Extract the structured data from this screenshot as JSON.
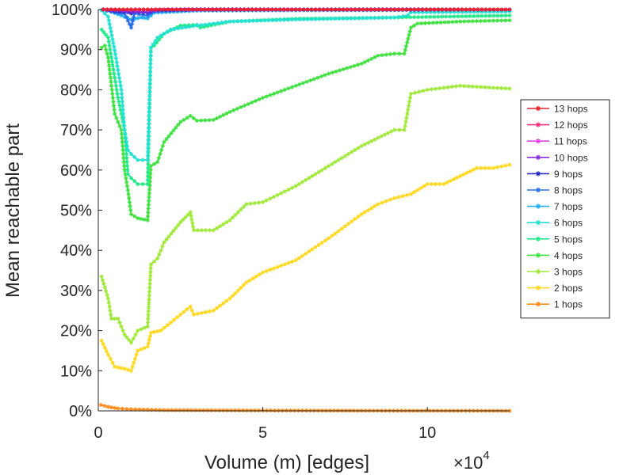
{
  "chart_data": {
    "type": "line",
    "xlabel": "Volume (m) [edges]",
    "ylabel": "Mean reachable part",
    "x_multiplier_base": "×10",
    "x_multiplier_exp": "4",
    "xlim": [
      0,
      12.5
    ],
    "ylim": [
      0,
      100
    ],
    "x_ticks": [
      {
        "value": 0,
        "label": "0"
      },
      {
        "value": 5,
        "label": "5"
      },
      {
        "value": 10,
        "label": "10"
      }
    ],
    "y_ticks": [
      {
        "value": 0,
        "label": "0%"
      },
      {
        "value": 10,
        "label": "10%"
      },
      {
        "value": 20,
        "label": "20%"
      },
      {
        "value": 30,
        "label": "30%"
      },
      {
        "value": 40,
        "label": "40%"
      },
      {
        "value": 50,
        "label": "50%"
      },
      {
        "value": 60,
        "label": "60%"
      },
      {
        "value": 70,
        "label": "70%"
      },
      {
        "value": 80,
        "label": "80%"
      },
      {
        "value": 90,
        "label": "90%"
      },
      {
        "value": 100,
        "label": "100%"
      }
    ],
    "grid": false,
    "legend_position": "right",
    "series": [
      {
        "name": "13 hops",
        "color": "#e8202a",
        "points": [
          [
            0.15,
            100
          ],
          [
            1.0,
            100
          ],
          [
            1.5,
            100
          ],
          [
            3,
            100
          ],
          [
            6,
            100
          ],
          [
            9,
            100
          ],
          [
            12.5,
            100
          ]
        ]
      },
      {
        "name": "12 hops",
        "color": "#f0307c",
        "points": [
          [
            0.15,
            100
          ],
          [
            1.0,
            100
          ],
          [
            1.5,
            100
          ],
          [
            3,
            100
          ],
          [
            6,
            100
          ],
          [
            9,
            100
          ],
          [
            12.5,
            100
          ]
        ]
      },
      {
        "name": "11 hops",
        "color": "#e040e0",
        "points": [
          [
            0.15,
            100
          ],
          [
            1.0,
            100
          ],
          [
            1.5,
            100
          ],
          [
            3,
            100
          ],
          [
            6,
            100
          ],
          [
            9,
            100
          ],
          [
            12.5,
            100
          ]
        ]
      },
      {
        "name": "10 hops",
        "color": "#8a2be2",
        "points": [
          [
            0.15,
            100
          ],
          [
            0.6,
            99.8
          ],
          [
            1.0,
            99.5
          ],
          [
            1.5,
            99.5
          ],
          [
            2,
            100
          ],
          [
            6,
            100
          ],
          [
            12.5,
            100
          ]
        ]
      },
      {
        "name": "9 hops",
        "color": "#2828c8",
        "points": [
          [
            0.15,
            100
          ],
          [
            0.5,
            99.6
          ],
          [
            0.9,
            99.3
          ],
          [
            1.0,
            99.0
          ],
          [
            1.1,
            99.4
          ],
          [
            1.5,
            99.2
          ],
          [
            1.7,
            99.8
          ],
          [
            3,
            100
          ],
          [
            12.5,
            100
          ]
        ]
      },
      {
        "name": "8 hops",
        "color": "#2a6ee8",
        "points": [
          [
            0.15,
            100
          ],
          [
            0.5,
            99.3
          ],
          [
            0.8,
            99.0
          ],
          [
            1.0,
            95.5
          ],
          [
            1.1,
            99.0
          ],
          [
            1.5,
            98.5
          ],
          [
            1.7,
            99.6
          ],
          [
            3,
            99.9
          ],
          [
            12.5,
            100
          ]
        ]
      },
      {
        "name": "7 hops",
        "color": "#20b0f0",
        "points": [
          [
            0.15,
            100
          ],
          [
            0.4,
            99.4
          ],
          [
            0.7,
            98.5
          ],
          [
            1.0,
            97.5
          ],
          [
            1.3,
            98.0
          ],
          [
            1.5,
            97.8
          ],
          [
            1.7,
            99.2
          ],
          [
            3,
            99.7
          ],
          [
            6,
            99.8
          ],
          [
            12.5,
            99.9
          ]
        ]
      },
      {
        "name": "6 hops",
        "color": "#20e0d0",
        "points": [
          [
            0.1,
            99.8
          ],
          [
            0.3,
            98.2
          ],
          [
            0.5,
            89.8
          ],
          [
            0.7,
            80
          ],
          [
            0.8,
            70
          ],
          [
            0.9,
            65
          ],
          [
            1.0,
            64
          ],
          [
            1.2,
            62.5
          ],
          [
            1.5,
            62.5
          ],
          [
            1.6,
            90.5
          ],
          [
            1.8,
            93
          ],
          [
            2.2,
            95
          ],
          [
            3,
            96
          ],
          [
            4,
            97
          ],
          [
            6,
            97.5
          ],
          [
            9,
            98
          ],
          [
            9.4,
            98.5
          ],
          [
            9.5,
            99.3
          ],
          [
            12.5,
            99.5
          ]
        ]
      },
      {
        "name": "5 hops",
        "color": "#20e888",
        "points": [
          [
            0.1,
            95
          ],
          [
            0.3,
            93
          ],
          [
            0.5,
            83
          ],
          [
            0.6,
            78
          ],
          [
            0.8,
            70
          ],
          [
            0.9,
            59
          ],
          [
            1.0,
            58
          ],
          [
            1.2,
            56.5
          ],
          [
            1.5,
            56.5
          ],
          [
            1.6,
            90.5
          ],
          [
            1.7,
            91
          ],
          [
            2,
            94
          ],
          [
            2.5,
            96
          ],
          [
            3,
            96.2
          ],
          [
            3.1,
            95.5
          ],
          [
            4,
            97
          ],
          [
            6,
            97.7
          ],
          [
            9,
            98
          ],
          [
            12.5,
            98.5
          ]
        ]
      },
      {
        "name": "4 hops",
        "color": "#40e040",
        "points": [
          [
            0.1,
            90.5
          ],
          [
            0.2,
            91
          ],
          [
            0.3,
            88
          ],
          [
            0.5,
            74
          ],
          [
            0.7,
            70
          ],
          [
            0.8,
            60
          ],
          [
            0.9,
            55
          ],
          [
            1.0,
            49
          ],
          [
            1.2,
            48
          ],
          [
            1.5,
            47.5
          ],
          [
            1.6,
            61
          ],
          [
            1.8,
            62
          ],
          [
            2,
            67
          ],
          [
            2.5,
            72
          ],
          [
            2.8,
            73.5
          ],
          [
            3,
            72.3
          ],
          [
            3.5,
            72.5
          ],
          [
            4,
            74.5
          ],
          [
            5,
            78
          ],
          [
            6,
            81
          ],
          [
            7,
            84
          ],
          [
            8,
            86.5
          ],
          [
            8.5,
            88.5
          ],
          [
            9,
            89
          ],
          [
            9.3,
            89
          ],
          [
            9.5,
            95.5
          ],
          [
            9.7,
            96.5
          ],
          [
            11,
            97
          ],
          [
            12.5,
            97.3
          ]
        ]
      },
      {
        "name": "3 hops",
        "color": "#a0e83a",
        "points": [
          [
            0.1,
            33.5
          ],
          [
            0.3,
            28
          ],
          [
            0.4,
            23
          ],
          [
            0.6,
            23
          ],
          [
            0.8,
            19
          ],
          [
            1.0,
            17
          ],
          [
            1.2,
            20
          ],
          [
            1.5,
            21
          ],
          [
            1.6,
            36.5
          ],
          [
            1.8,
            38
          ],
          [
            2,
            42
          ],
          [
            2.5,
            47
          ],
          [
            2.8,
            49.5
          ],
          [
            2.9,
            45
          ],
          [
            3.5,
            45
          ],
          [
            4,
            47.5
          ],
          [
            4.5,
            51.5
          ],
          [
            5,
            52
          ],
          [
            6,
            56
          ],
          [
            7,
            61
          ],
          [
            8,
            66
          ],
          [
            8.5,
            68
          ],
          [
            9,
            70
          ],
          [
            9.3,
            70
          ],
          [
            9.5,
            79
          ],
          [
            10,
            80
          ],
          [
            11,
            81
          ],
          [
            12,
            80.5
          ],
          [
            12.5,
            80.3
          ]
        ]
      },
      {
        "name": "2 hops",
        "color": "#ffd820",
        "points": [
          [
            0.1,
            17.5
          ],
          [
            0.3,
            14
          ],
          [
            0.5,
            11
          ],
          [
            0.8,
            10.5
          ],
          [
            1.0,
            10
          ],
          [
            1.2,
            15
          ],
          [
            1.5,
            16
          ],
          [
            1.6,
            19.5
          ],
          [
            1.9,
            20
          ],
          [
            2.2,
            22
          ],
          [
            2.5,
            24
          ],
          [
            2.8,
            26
          ],
          [
            2.9,
            24
          ],
          [
            3.5,
            25
          ],
          [
            4,
            28
          ],
          [
            4.5,
            32
          ],
          [
            5,
            34.5
          ],
          [
            6,
            37.5
          ],
          [
            7,
            43
          ],
          [
            8,
            49
          ],
          [
            8.5,
            51.5
          ],
          [
            9,
            53
          ],
          [
            9.5,
            54
          ],
          [
            10,
            56.5
          ],
          [
            10.5,
            56.5
          ],
          [
            11,
            58.5
          ],
          [
            11.5,
            60.5
          ],
          [
            12,
            60.5
          ],
          [
            12.5,
            61.3
          ]
        ]
      },
      {
        "name": "1 hops",
        "color": "#ff8c1a",
        "points": [
          [
            0.08,
            1.5
          ],
          [
            0.3,
            1
          ],
          [
            0.6,
            0.6
          ],
          [
            1,
            0.4
          ],
          [
            2,
            0.2
          ],
          [
            5,
            0.1
          ],
          [
            8,
            0.05
          ],
          [
            12.5,
            0.02
          ]
        ]
      }
    ]
  }
}
